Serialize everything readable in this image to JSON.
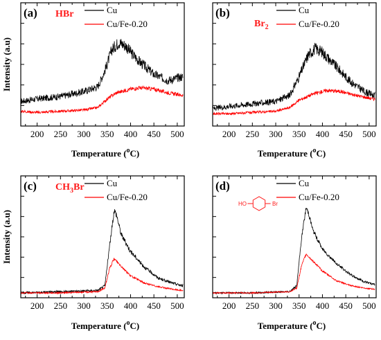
{
  "chart_data": [
    {
      "type": "line",
      "panel_label": "(a)",
      "species_label": {
        "main": "HBr",
        "sub": ""
      },
      "xlabel": "Temperature (",
      "xlabel_sup": "o",
      "xlabel_tail": "C)",
      "ylabel": "Intensity (a.u)",
      "xlim": [
        165,
        515
      ],
      "ylim": [
        0,
        1
      ],
      "x_ticks": [
        200,
        250,
        300,
        350,
        400,
        450,
        500
      ],
      "legend_position": "top-right",
      "series": [
        {
          "name": "Cu",
          "color": "#000000",
          "noise": 0.035,
          "x": [
            165,
            200,
            250,
            300,
            330,
            345,
            360,
            375,
            390,
            400,
            420,
            450,
            480,
            510
          ],
          "y": [
            0.2,
            0.22,
            0.24,
            0.28,
            0.32,
            0.45,
            0.62,
            0.68,
            0.65,
            0.6,
            0.52,
            0.42,
            0.37,
            0.4
          ]
        },
        {
          "name": "Cu/Fe-0.20",
          "color": "#ff0000",
          "noise": 0.018,
          "x": [
            165,
            200,
            250,
            300,
            330,
            350,
            370,
            400,
            420,
            450,
            480,
            510
          ],
          "y": [
            0.12,
            0.11,
            0.12,
            0.13,
            0.15,
            0.22,
            0.27,
            0.3,
            0.31,
            0.3,
            0.27,
            0.25
          ]
        }
      ]
    },
    {
      "type": "line",
      "panel_label": "(b)",
      "species_label": {
        "main": "Br",
        "sub": "2"
      },
      "xlabel": "Temperature (",
      "xlabel_sup": "o",
      "xlabel_tail": "C)",
      "ylabel": "",
      "xlim": [
        165,
        515
      ],
      "ylim": [
        0,
        1
      ],
      "x_ticks": [
        200,
        250,
        300,
        350,
        400,
        450,
        500
      ],
      "legend_position": "top-right",
      "series": [
        {
          "name": "Cu",
          "color": "#000000",
          "noise": 0.035,
          "x": [
            165,
            200,
            250,
            300,
            330,
            350,
            370,
            385,
            400,
            430,
            460,
            490,
            510
          ],
          "y": [
            0.14,
            0.16,
            0.18,
            0.2,
            0.25,
            0.4,
            0.58,
            0.63,
            0.6,
            0.48,
            0.36,
            0.28,
            0.25
          ]
        },
        {
          "name": "Cu/Fe-0.20",
          "color": "#ff0000",
          "noise": 0.018,
          "x": [
            165,
            200,
            250,
            300,
            330,
            350,
            380,
            410,
            440,
            470,
            510
          ],
          "y": [
            0.1,
            0.1,
            0.11,
            0.12,
            0.15,
            0.21,
            0.26,
            0.29,
            0.28,
            0.25,
            0.22
          ]
        }
      ]
    },
    {
      "type": "line",
      "panel_label": "(c)",
      "species_label": {
        "main": "CH",
        "sub": "3",
        "tail": "Br"
      },
      "xlabel": "Temperature (",
      "xlabel_sup": "o",
      "xlabel_tail": "C)",
      "ylabel": "Intensity (a.u)",
      "xlim": [
        165,
        515
      ],
      "ylim": [
        0,
        1
      ],
      "x_ticks": [
        200,
        250,
        300,
        350,
        400,
        450,
        500
      ],
      "legend_position": "top-right",
      "series": [
        {
          "name": "Cu",
          "color": "#000000",
          "noise": 0.018,
          "x": [
            165,
            250,
            330,
            345,
            355,
            365,
            370,
            380,
            400,
            430,
            460,
            490,
            510
          ],
          "y": [
            0.04,
            0.05,
            0.06,
            0.1,
            0.42,
            0.72,
            0.68,
            0.52,
            0.38,
            0.25,
            0.16,
            0.12,
            0.1
          ]
        },
        {
          "name": "Cu/Fe-0.20",
          "color": "#ff0000",
          "noise": 0.012,
          "x": [
            165,
            250,
            330,
            345,
            355,
            365,
            375,
            400,
            430,
            460,
            490,
            510
          ],
          "y": [
            0.04,
            0.04,
            0.05,
            0.08,
            0.24,
            0.32,
            0.28,
            0.18,
            0.12,
            0.09,
            0.07,
            0.06
          ]
        }
      ]
    },
    {
      "type": "line",
      "panel_label": "(d)",
      "species_label": {
        "main": "",
        "sub": ""
      },
      "molecule": {
        "left": "HO",
        "right": "Br"
      },
      "xlabel": "Temperature (",
      "xlabel_sup": "o",
      "xlabel_tail": "C)",
      "ylabel": "",
      "xlim": [
        165,
        515
      ],
      "ylim": [
        0,
        1
      ],
      "x_ticks": [
        200,
        250,
        300,
        350,
        400,
        450,
        500
      ],
      "legend_position": "top-right",
      "series": [
        {
          "name": "Cu",
          "color": "#000000",
          "noise": 0.014,
          "x": [
            165,
            250,
            330,
            345,
            355,
            365,
            370,
            380,
            400,
            430,
            460,
            490,
            510
          ],
          "y": [
            0.04,
            0.04,
            0.05,
            0.1,
            0.48,
            0.74,
            0.7,
            0.55,
            0.4,
            0.28,
            0.19,
            0.13,
            0.11
          ]
        },
        {
          "name": "Cu/Fe-0.20",
          "color": "#ff0000",
          "noise": 0.01,
          "x": [
            165,
            250,
            330,
            345,
            355,
            365,
            375,
            400,
            430,
            460,
            490,
            510
          ],
          "y": [
            0.04,
            0.04,
            0.05,
            0.08,
            0.26,
            0.36,
            0.32,
            0.22,
            0.14,
            0.1,
            0.08,
            0.07
          ]
        }
      ]
    }
  ]
}
